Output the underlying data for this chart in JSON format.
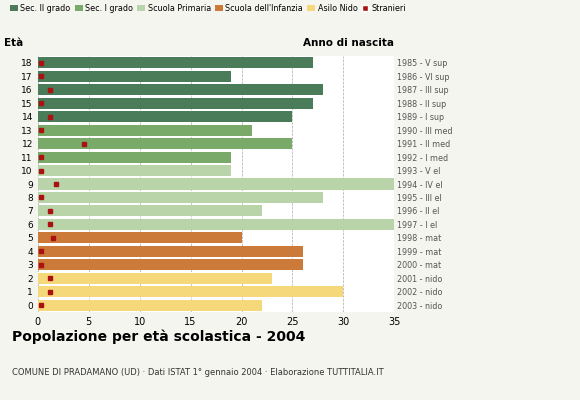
{
  "ages": [
    18,
    17,
    16,
    15,
    14,
    13,
    12,
    11,
    10,
    9,
    8,
    7,
    6,
    5,
    4,
    3,
    2,
    1,
    0
  ],
  "bar_values": [
    27,
    19,
    28,
    27,
    25,
    21,
    25,
    19,
    19,
    35,
    28,
    22,
    35,
    20,
    26,
    26,
    23,
    30,
    22
  ],
  "stranieri": [
    0.3,
    0.3,
    1.2,
    0.3,
    1.2,
    0.3,
    4.5,
    0.3,
    0.3,
    1.8,
    0.3,
    1.2,
    1.2,
    1.5,
    0.3,
    0.3,
    1.2,
    1.2,
    0.3
  ],
  "bar_colors": [
    "#4a7c59",
    "#4a7c59",
    "#4a7c59",
    "#4a7c59",
    "#4a7c59",
    "#7aaa6a",
    "#7aaa6a",
    "#7aaa6a",
    "#b8d4a8",
    "#b8d4a8",
    "#b8d4a8",
    "#b8d4a8",
    "#b8d4a8",
    "#cc7a3a",
    "#cc7a3a",
    "#cc7a3a",
    "#f5d87a",
    "#f5d87a",
    "#f5d87a"
  ],
  "anno_nascita": [
    "1985 - V sup",
    "1986 - VI sup",
    "1987 - III sup",
    "1988 - II sup",
    "1989 - I sup",
    "1990 - III med",
    "1991 - II med",
    "1992 - I med",
    "1993 - V el",
    "1994 - IV el",
    "1995 - III el",
    "1996 - II el",
    "1997 - I el",
    "1998 - mat",
    "1999 - mat",
    "2000 - mat",
    "2001 - nido",
    "2002 - nido",
    "2003 - nido"
  ],
  "legend_labels": [
    "Sec. II grado",
    "Sec. I grado",
    "Scuola Primaria",
    "Scuola dell'Infanzia",
    "Asilo Nido",
    "Stranieri"
  ],
  "legend_colors": [
    "#4a7c59",
    "#7aaa6a",
    "#b8d4a8",
    "#cc7a3a",
    "#f5d87a",
    "#aa1111"
  ],
  "title": "Popolazione per età scolastica - 2004",
  "subtitle": "COMUNE DI PRADAMANO (UD) · Dati ISTAT 1° gennaio 2004 · Elaborazione TUTTITALIA.IT",
  "xlabel_eta": "Età",
  "xlabel_anno": "Anno di nascita",
  "xlim": [
    0,
    35
  ],
  "stranieri_color": "#aa1111",
  "background_color": "#f5f5f0",
  "bar_background": "#ffffff",
  "grid_color": "#aaaaaa"
}
